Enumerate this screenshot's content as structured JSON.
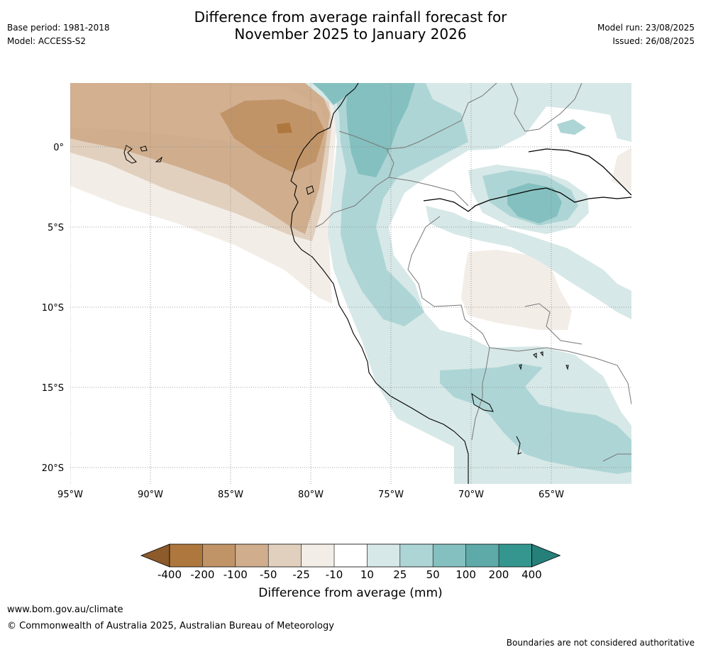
{
  "header": {
    "title_line1": "Difference from average rainfall forecast for",
    "title_line2": "November 2025 to January 2026",
    "base_period": "Base period: 1981-2018",
    "model": "Model: ACCESS-S2",
    "model_run": "Model run: 23/08/2025",
    "issued": "Issued: 26/08/2025"
  },
  "map": {
    "lon_ticks": [
      "95°W",
      "90°W",
      "85°W",
      "80°W",
      "75°W",
      "70°W",
      "65°W"
    ],
    "lat_ticks": [
      "0°",
      "5°S",
      "10°S",
      "15°S",
      "20°S"
    ]
  },
  "colorbar": {
    "title": "Difference from average (mm)",
    "labels": [
      "-400",
      "-200",
      "-100",
      "-50",
      "-25",
      "-10",
      "10",
      "25",
      "50",
      "100",
      "200",
      "400"
    ],
    "colors": [
      "#8c5a2b",
      "#ae773e",
      "#c19468",
      "#d0ae8d",
      "#e2d0bf",
      "#f3ede7",
      "#ffffff",
      "#d6e8e7",
      "#aed5d5",
      "#84c0bf",
      "#5eaaa9",
      "#35968f",
      "#26807a"
    ]
  },
  "footer": {
    "url": "www.bom.gov.au/climate",
    "copyright": "© Commonwealth of Australia 2025, Australian Bureau of Meteorology",
    "note": "Boundaries are not considered authoritative"
  }
}
